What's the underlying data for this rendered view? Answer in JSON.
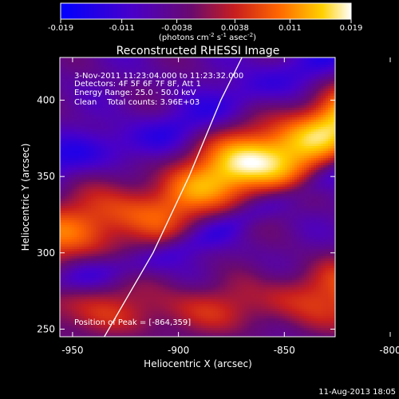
{
  "colorbar": {
    "ticks": [
      "-0.019",
      "-0.011",
      "-0.0038",
      "0.0038",
      "0.011",
      "0.019"
    ],
    "tick_values": [
      -0.019,
      -0.011,
      -0.0038,
      0.0038,
      0.011,
      0.019
    ],
    "range": [
      -0.019,
      0.019
    ],
    "units_text": "(photons cm",
    "units_exp1": "-2",
    "units_mid": " s",
    "units_exp2": "-1",
    "units_mid2": " asec",
    "units_exp3": "-2",
    "units_close": ")"
  },
  "title": "Reconstructed RHESSI Image",
  "annotations": {
    "time_range": "3-Nov-2011 11:23:04.000 to 11:23:32.000",
    "detectors": "Detectors: 4F 5F 6F 7F 8F, Att 1",
    "energy": "Energy Range: 25.0 - 50.0 keV",
    "clean": "Clean    Total counts: 3.96E+03",
    "peak": "Position of Peak = [-864,359]"
  },
  "footer": {
    "timestamp": "11-Aug-2013 18:05"
  },
  "colors": {
    "background": "#000000",
    "limb_line": "#ffffff",
    "text": "#ffffff"
  },
  "chart_data": {
    "type": "heatmap",
    "title": "Reconstructed RHESSI Image",
    "xlabel": "Heliocentric X (arcsec)",
    "ylabel": "Heliocentric Y (arcsec)",
    "xlim": [
      -956,
      -826
    ],
    "ylim": [
      245,
      428
    ],
    "x_ticks": [
      -950,
      -900,
      -850,
      -800
    ],
    "y_ticks": [
      250,
      300,
      350,
      400
    ],
    "x_tick_labels": [
      "-950",
      "-900",
      "-850",
      "-800"
    ],
    "y_tick_labels": [
      "250",
      "300",
      "350",
      "400"
    ],
    "colormap": "blue-purple-red-yellow-white",
    "color_range": [
      -0.019,
      0.019
    ],
    "peak_position": [
      -864,
      359
    ],
    "bands": [
      {
        "description": "main bright ridge",
        "ridge": [
          [
            -956,
            313
          ],
          [
            -910,
            328
          ],
          [
            -880,
            347
          ],
          [
            -864,
            359
          ],
          [
            -840,
            374
          ],
          [
            -800,
            388
          ],
          [
            -826,
            385
          ]
        ],
        "peak_value": 0.019
      },
      {
        "description": "lower bright ridge",
        "ridge": [
          [
            -956,
            262
          ],
          [
            -900,
            262
          ],
          [
            -860,
            265
          ],
          [
            -830,
            282
          ]
        ],
        "peak_value": 0.012
      }
    ],
    "limb_curve": [
      [
        -935,
        245
      ],
      [
        -912,
        300
      ],
      [
        -895,
        350
      ],
      [
        -880,
        400
      ],
      [
        -870,
        428
      ]
    ]
  }
}
